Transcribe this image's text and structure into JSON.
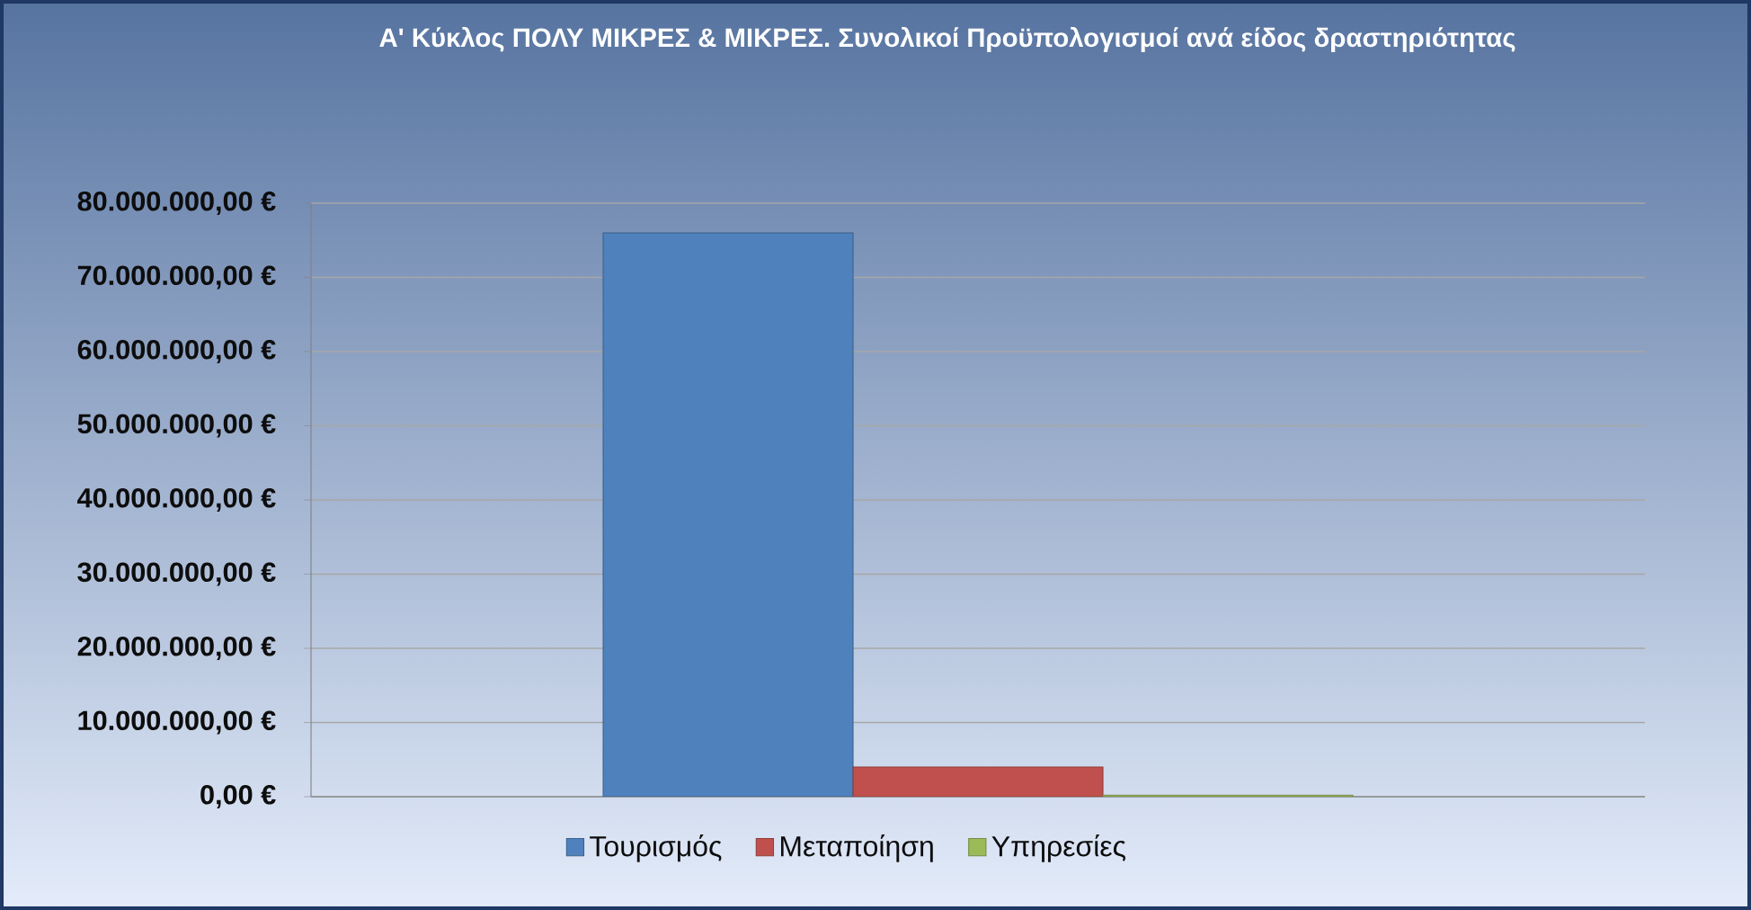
{
  "chart_data": {
    "type": "bar",
    "title": "Α' Κύκλος ΠΟΛΥ ΜΙΚΡΕΣ & ΜΙΚΡΕΣ. Συνολικοί Προϋπολογισμοί ανά είδος δραστηριότητας",
    "categories": [
      null
    ],
    "series": [
      {
        "name": "Τουρισμός",
        "color": "#4f81bd",
        "values": [
          76000000
        ]
      },
      {
        "name": "Μεταποίηση",
        "color": "#c0504d",
        "values": [
          4000000
        ]
      },
      {
        "name": "Υπηρεσίες",
        "color": "#9bbb59",
        "values": [
          200000
        ]
      }
    ],
    "ylim": [
      0,
      80000000
    ],
    "yticks": [
      {
        "value": 0,
        "label": "0,00 €"
      },
      {
        "value": 10000000,
        "label": "10.000.000,00 €"
      },
      {
        "value": 20000000,
        "label": "20.000.000,00 €"
      },
      {
        "value": 30000000,
        "label": "30.000.000,00 €"
      },
      {
        "value": 40000000,
        "label": "40.000.000,00 €"
      },
      {
        "value": 50000000,
        "label": "50.000.000,00 €"
      },
      {
        "value": 60000000,
        "label": "60.000.000,00 €"
      },
      {
        "value": 70000000,
        "label": "70.000.000,00 €"
      },
      {
        "value": 80000000,
        "label": "80.000.000,00 €"
      }
    ],
    "grid": "y",
    "legend": "bottom",
    "tick_labels": "y"
  }
}
